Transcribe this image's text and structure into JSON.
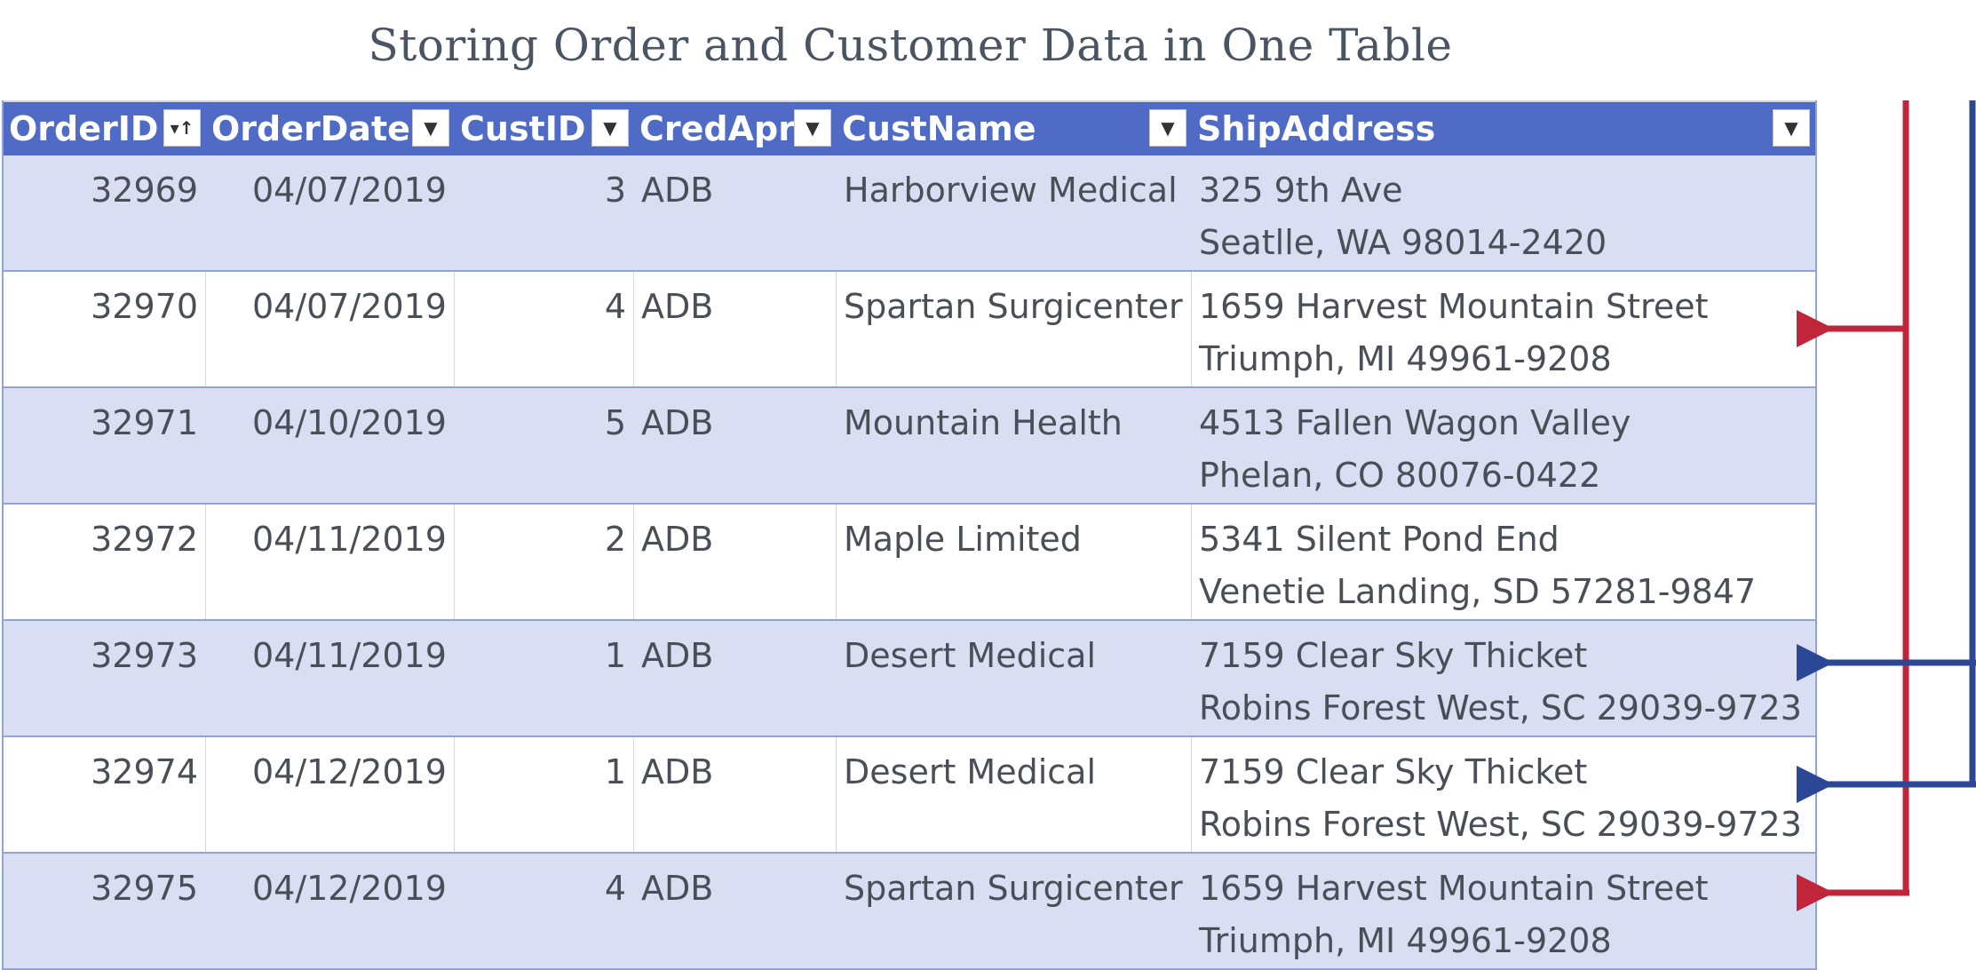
{
  "title": "Storing Order and Customer Data in One Table",
  "colors": {
    "header_bg": "#4f6bc6",
    "band_bg": "#d9def2",
    "red_arrow": "#c0253a",
    "blue_arrow": "#2b4796"
  },
  "columns": [
    {
      "label": "OrderID",
      "filter_icon": "sort-ascending-filter-icon"
    },
    {
      "label": "OrderDate",
      "filter_icon": "dropdown-filter-icon"
    },
    {
      "label": "CustID",
      "filter_icon": "dropdown-filter-icon"
    },
    {
      "label": "CredApr",
      "filter_icon": "dropdown-filter-icon"
    },
    {
      "label": "CustName",
      "filter_icon": "dropdown-filter-icon"
    },
    {
      "label": "ShipAddress",
      "filter_icon": "dropdown-filter-icon"
    }
  ],
  "rows": [
    {
      "order_id": "32969",
      "order_date": "04/07/2019",
      "cust_id": "3",
      "cred_apr": "ADB",
      "cust_name": "Harborview Medical",
      "addr1": "325 9th Ave",
      "addr2": "Seatlle, WA 98014-2420"
    },
    {
      "order_id": "32970",
      "order_date": "04/07/2019",
      "cust_id": "4",
      "cred_apr": "ADB",
      "cust_name": "Spartan Surgicenter",
      "addr1": "1659 Harvest Mountain Street",
      "addr2": "Triumph, MI 49961-9208"
    },
    {
      "order_id": "32971",
      "order_date": "04/10/2019",
      "cust_id": "5",
      "cred_apr": "ADB",
      "cust_name": "Mountain Health",
      "addr1": "4513 Fallen Wagon Valley",
      "addr2": "Phelan, CO 80076-0422"
    },
    {
      "order_id": "32972",
      "order_date": "04/11/2019",
      "cust_id": "2",
      "cred_apr": "ADB",
      "cust_name": "Maple Limited",
      "addr1": "5341 Silent Pond End",
      "addr2": "Venetie Landing, SD 57281-9847"
    },
    {
      "order_id": "32973",
      "order_date": "04/11/2019",
      "cust_id": "1",
      "cred_apr": "ADB",
      "cust_name": "Desert Medical",
      "addr1": "7159 Clear Sky Thicket",
      "addr2": "Robins Forest West, SC 29039-9723"
    },
    {
      "order_id": "32974",
      "order_date": "04/12/2019",
      "cust_id": "1",
      "cred_apr": "ADB",
      "cust_name": "Desert Medical",
      "addr1": "7159 Clear Sky Thicket",
      "addr2": "Robins Forest West, SC 29039-9723"
    },
    {
      "order_id": "32975",
      "order_date": "04/12/2019",
      "cust_id": "4",
      "cred_apr": "ADB",
      "cust_name": "Spartan Surgicenter",
      "addr1": "1659 Harvest Mountain Street",
      "addr2": "Triumph, MI 49961-9208"
    }
  ]
}
